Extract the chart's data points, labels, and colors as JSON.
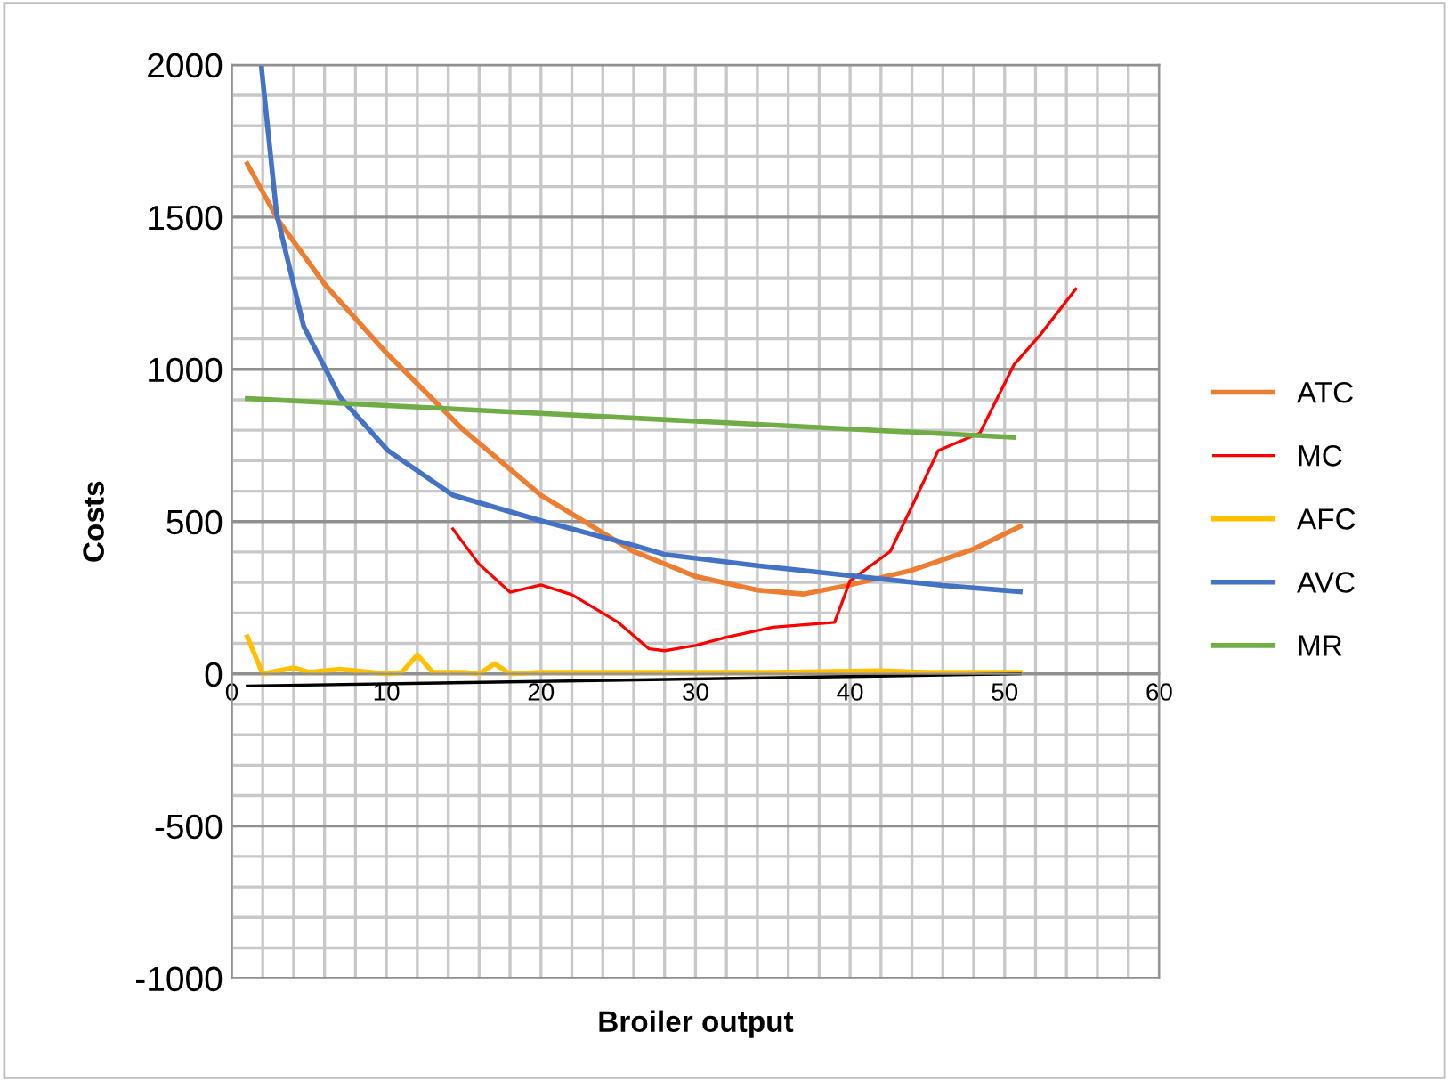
{
  "chart_data": {
    "type": "line",
    "xlabel": "Broiler output",
    "ylabel": "Costs",
    "xlim": [
      0,
      60
    ],
    "ylim": [
      -1000,
      2000
    ],
    "xticks": [
      0,
      {
        "value": 2,
        "label": null
      },
      {
        "value": 4,
        "label": null
      },
      {
        "value": 6,
        "label": null
      },
      {
        "value": 8,
        "label": null
      },
      10,
      {
        "value": 12,
        "label": null
      },
      {
        "value": 14,
        "label": null
      },
      {
        "value": 16,
        "label": null
      },
      {
        "value": 18,
        "label": null
      },
      20,
      {
        "value": 22,
        "label": null
      },
      {
        "value": 24,
        "label": null
      },
      {
        "value": 26,
        "label": null
      },
      {
        "value": 28,
        "label": null
      },
      30,
      {
        "value": 32,
        "label": null
      },
      {
        "value": 34,
        "label": null
      },
      {
        "value": 36,
        "label": null
      },
      {
        "value": 38,
        "label": null
      },
      40,
      {
        "value": 42,
        "label": null
      },
      {
        "value": 44,
        "label": null
      },
      {
        "value": 46,
        "label": null
      },
      {
        "value": 48,
        "label": null
      },
      50,
      {
        "value": 52,
        "label": null
      },
      {
        "value": 54,
        "label": null
      },
      {
        "value": 56,
        "label": null
      },
      {
        "value": 58,
        "label": null
      },
      60
    ],
    "yticks": [
      -1000,
      {
        "value": -900,
        "label": null
      },
      {
        "value": -800,
        "label": null
      },
      {
        "value": -700,
        "label": null
      },
      {
        "value": -600,
        "label": null
      },
      -500,
      {
        "value": -400,
        "label": null
      },
      {
        "value": -300,
        "label": null
      },
      {
        "value": -200,
        "label": null
      },
      {
        "value": -100,
        "label": null
      },
      0,
      {
        "value": 100,
        "label": null
      },
      {
        "value": 200,
        "label": null
      },
      {
        "value": 300,
        "label": null
      },
      {
        "value": 400,
        "label": null
      },
      500,
      {
        "value": 600,
        "label": null
      },
      {
        "value": 700,
        "label": null
      },
      {
        "value": 800,
        "label": null
      },
      {
        "value": 900,
        "label": null
      },
      1000,
      {
        "value": 1100,
        "label": null
      },
      {
        "value": 1200,
        "label": null
      },
      {
        "value": 1300,
        "label": null
      },
      {
        "value": 1400,
        "label": null
      },
      1500,
      {
        "value": 1600,
        "label": null
      },
      {
        "value": 1700,
        "label": null
      },
      {
        "value": 1800,
        "label": null
      },
      {
        "value": 1900,
        "label": null
      },
      2000
    ],
    "grid": true,
    "legend": "right",
    "marker": "none",
    "line_style": "solid",
    "series": [
      {
        "name": "ATC",
        "color": "#ed7d31",
        "x": [
          1,
          3,
          6,
          10,
          15,
          20,
          26,
          30,
          34,
          37,
          40,
          44,
          48,
          51
        ],
        "values": [
          1675,
          1490,
          1280,
          1054,
          800,
          587,
          402,
          320,
          275,
          262,
          292,
          340,
          410,
          484
        ]
      },
      {
        "name": "MC",
        "color": "#ff0000",
        "x": [
          14.3,
          16,
          18,
          20,
          22,
          25,
          27,
          28,
          30,
          32,
          35,
          39,
          40,
          42.6,
          44,
          45.7,
          48.4,
          50.6,
          52.3,
          54.6
        ],
        "values": [
          476,
          360,
          268,
          292,
          260,
          169,
          82,
          76,
          93,
          120,
          153,
          169,
          305,
          402,
          550,
          733,
          791,
          1015,
          1113,
          1264
        ]
      },
      {
        "name": "AFC",
        "color": "#ffc000",
        "x": [
          1,
          2,
          3,
          4,
          5,
          6,
          7,
          8,
          10,
          11,
          12,
          13,
          15,
          16,
          17,
          18,
          20,
          25,
          30,
          35,
          42,
          45,
          51
        ],
        "values": [
          122,
          0,
          10,
          20,
          5,
          10,
          15,
          10,
          0,
          5,
          62,
          5,
          5,
          0,
          33,
          0,
          5,
          5,
          5,
          5,
          10,
          5,
          5
        ]
      },
      {
        "name": "AVC",
        "color": "#4472c4",
        "x": [
          1.9,
          2.9,
          4.65,
          7,
          10.1,
          14.3,
          20.2,
          26,
          28,
          34,
          40.3,
          46,
          51
        ],
        "values": [
          2000,
          1510,
          1141,
          909,
          733,
          587,
          500,
          422,
          392,
          355,
          321,
          290,
          270
        ]
      },
      {
        "name": "MR",
        "color": "#70ad47",
        "x": [
          1,
          50.6
        ],
        "values": [
          904,
          777
        ]
      },
      {
        "color": "#000000",
        "x": [
          1,
          51
        ],
        "values": [
          -40,
          0
        ]
      }
    ]
  }
}
